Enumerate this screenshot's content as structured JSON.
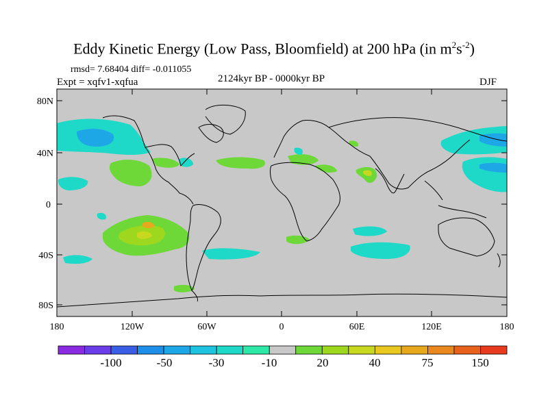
{
  "title": {
    "main": "Eddy Kinetic Energy (Low Pass, Bloomfield) at 200 hPa (in m",
    "sup1": "2",
    "mid": "s",
    "sup2": "-2",
    "close": ")"
  },
  "stats": "rmsd= 7.68404 diff= -0.011055",
  "expt": "Expt = xqfv1-xqfua",
  "center_label": "2124kyr BP - 0000kyr BP",
  "season": "DJF",
  "lat_labels": [
    "80N",
    "40N",
    "0",
    "40S",
    "80S"
  ],
  "lon_labels": [
    "180",
    "120W",
    "60W",
    "0",
    "60E",
    "120E",
    "180"
  ],
  "colorbar": {
    "labels": [
      "-100",
      "-50",
      "-30",
      "-10",
      "20",
      "40",
      "75",
      "150"
    ],
    "colors": [
      "#8a2be2",
      "#6a3de8",
      "#3a5fe6",
      "#1e8fe8",
      "#1ea7e6",
      "#1ec3e0",
      "#1fd9c8",
      "#2ee8a8",
      "#c8c8c8",
      "#6ed838",
      "#9ed81e",
      "#c8d81e",
      "#e8c81e",
      "#e8a81e",
      "#e8881e",
      "#e8621e",
      "#e83a1e"
    ]
  },
  "colors": {
    "land_ocean_bg": "#c8c8c8",
    "teal": "#1fd9c8",
    "blue": "#1ea7e6",
    "green": "#6ed838",
    "yellow_green": "#9ed81e",
    "olive": "#c8d81e",
    "orange": "#e8a81e"
  }
}
